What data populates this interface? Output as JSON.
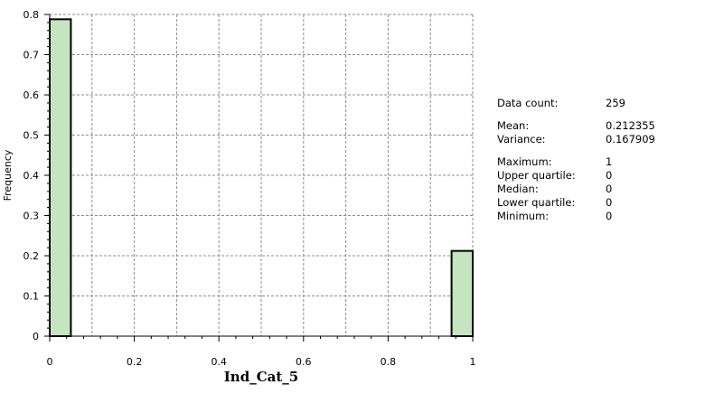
{
  "chart_data": {
    "type": "bar",
    "title": "",
    "xlabel": "Ind_Cat_5",
    "ylabel": "Frequency",
    "xlim": [
      0,
      1
    ],
    "ylim": [
      0,
      0.8
    ],
    "grid": true,
    "bins": [
      {
        "x_start": 0.0,
        "x_end": 0.05,
        "value": 0.788
      },
      {
        "x_start": 0.95,
        "x_end": 1.0,
        "value": 0.212
      }
    ],
    "x_ticks": [
      "0",
      "0.2",
      "0.4",
      "0.6",
      "0.8",
      "1"
    ],
    "y_ticks": [
      "0",
      "0.1",
      "0.2",
      "0.3",
      "0.4",
      "0.5",
      "0.6",
      "0.7",
      "0.8"
    ],
    "bar_fill": "#c5e5c0",
    "bar_stroke": "#000000"
  },
  "stats": {
    "count": {
      "label": "Data count:",
      "value": "259"
    },
    "mean": {
      "label": "Mean:",
      "value": "0.212355"
    },
    "variance": {
      "label": "Variance:",
      "value": "0.167909"
    },
    "maximum": {
      "label": "Maximum:",
      "value": "1"
    },
    "upper_quartile": {
      "label": "Upper quartile:",
      "value": "0"
    },
    "median": {
      "label": "Median:",
      "value": "0"
    },
    "lower_quartile": {
      "label": "Lower quartile:",
      "value": "0"
    },
    "minimum": {
      "label": "Minimum:",
      "value": "0"
    }
  }
}
